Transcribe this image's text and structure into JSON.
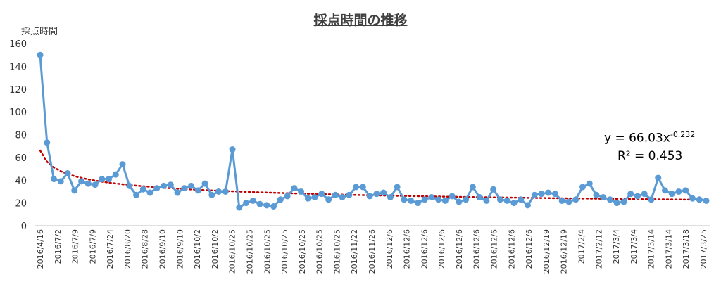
{
  "chart_data": {
    "type": "line",
    "title": "採点時間の推移",
    "xlabel": "",
    "ylabel": "採点時間",
    "ylim": [
      0,
      160
    ],
    "yticks": [
      0,
      20,
      40,
      60,
      80,
      100,
      120,
      140,
      160
    ],
    "grid": false,
    "legend": "none",
    "xtick_labels": [
      "2016/4/16",
      "2016/7/2",
      "2016/7/9",
      "2016/7/9",
      "2016/7/24",
      "2016/8/20",
      "2016/8/28",
      "2016/9/10",
      "2016/9/10",
      "2016/10/2",
      "2016/10/2",
      "2016/10/25",
      "2016/10/25",
      "2016/10/25",
      "2016/10/25",
      "2016/10/25",
      "2016/10/25",
      "2016/10/25",
      "2016/11/22",
      "2016/11/26",
      "2016/12/6",
      "2016/12/6",
      "2016/12/6",
      "2016/12/6",
      "2016/12/6",
      "2016/12/6",
      "2016/12/6",
      "2016/12/6",
      "2016/12/6",
      "2016/12/19",
      "2016/12/19",
      "2017/2/4",
      "2017/2/12",
      "2017/3/4",
      "2017/3/4",
      "2017/3/14",
      "2017/3/14",
      "2017/3/18",
      "2017/3/25"
    ],
    "series": [
      {
        "name": "採点時間",
        "color": "#5B9BD5",
        "values": [
          150,
          73,
          41,
          39,
          46,
          31,
          39,
          37,
          36,
          41,
          41,
          45,
          54,
          35,
          27,
          32,
          29,
          33,
          35,
          36,
          29,
          33,
          35,
          31,
          37,
          27,
          30,
          30,
          67,
          16,
          20,
          22,
          19,
          18,
          17,
          23,
          26,
          33,
          30,
          24,
          25,
          28,
          23,
          27,
          25,
          27,
          34,
          34,
          26,
          28,
          29,
          25,
          34,
          23,
          22,
          20,
          23,
          25,
          23,
          22,
          26,
          21,
          23,
          34,
          25,
          22,
          32,
          23,
          22,
          20,
          23,
          18,
          27,
          28,
          29,
          28,
          22,
          21,
          23,
          34,
          37,
          27,
          25,
          23,
          20,
          21,
          28,
          26,
          28,
          23,
          42,
          31,
          28,
          30,
          31,
          24,
          23,
          22
        ]
      }
    ],
    "trendline": {
      "type": "power",
      "color": "#C00000",
      "coefficient": 66.03,
      "exponent": -0.232,
      "equation_label": "y = 66.03x",
      "equation_exponent": "-0.232",
      "r2_label": "R² = 0.453"
    }
  }
}
